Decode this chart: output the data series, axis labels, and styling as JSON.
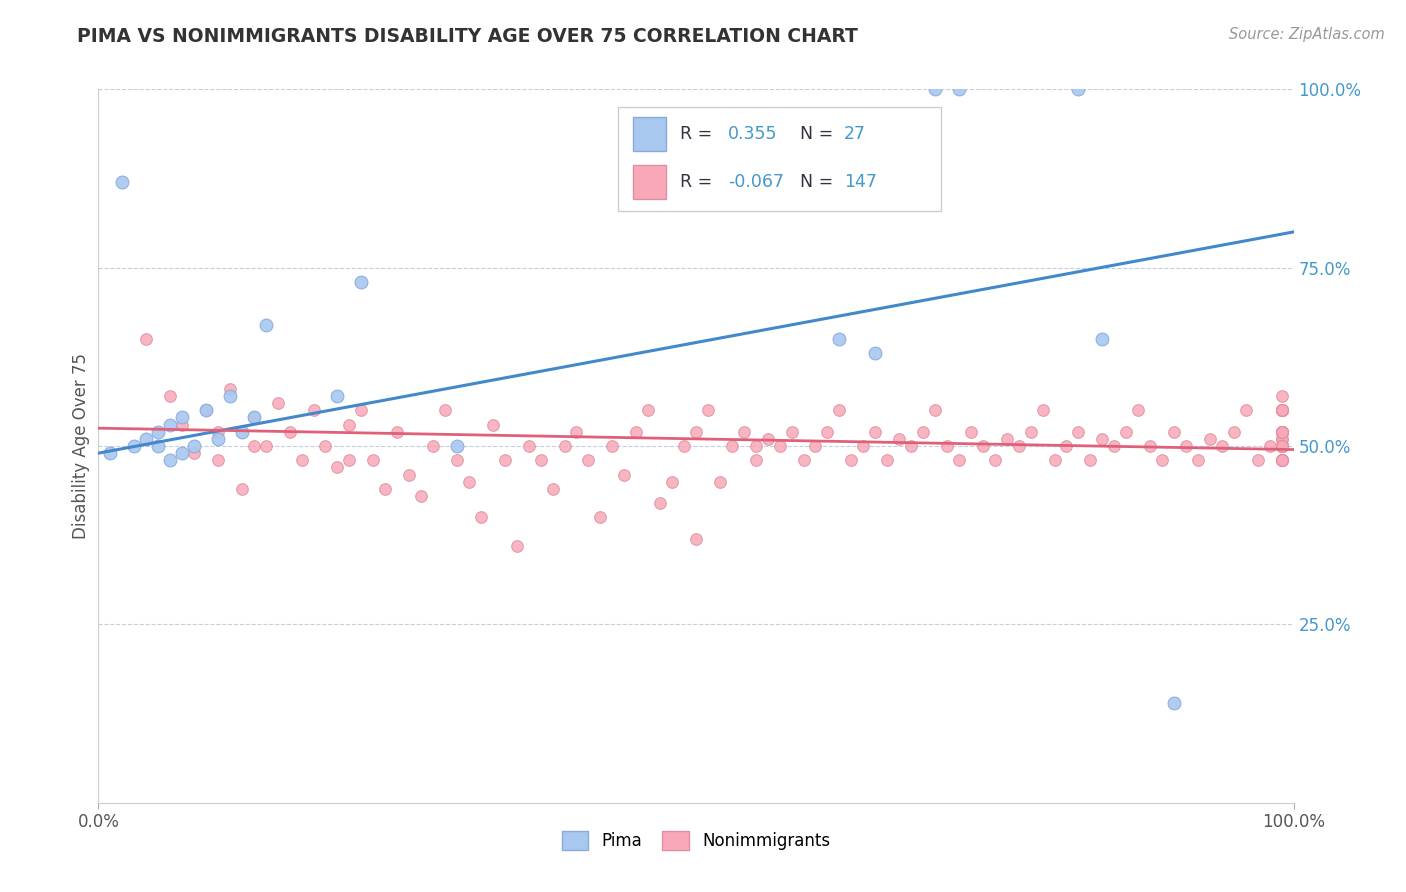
{
  "title": "PIMA VS NONIMMIGRANTS DISABILITY AGE OVER 75 CORRELATION CHART",
  "source": "Source: ZipAtlas.com",
  "ylabel": "Disability Age Over 75",
  "pima_color": "#a8c8f0",
  "pima_edge_color": "#88aadd",
  "pima_line_color": "#4488cc",
  "nonimm_color": "#f8a8b8",
  "nonimm_edge_color": "#e090a0",
  "nonimm_line_color": "#e0607a",
  "right_tick_color": "#4499cc",
  "legend_text_color": "#333344",
  "legend_num_color": "#4499cc",
  "grid_color": "#aabbcc",
  "pima_R": 0.355,
  "pima_N": 27,
  "nonimm_R": -0.067,
  "nonimm_N": 147,
  "xlim": [
    0,
    100
  ],
  "ylim": [
    0,
    100
  ],
  "yticks": [
    25,
    50,
    75,
    100
  ],
  "ytick_labels": [
    "25.0%",
    "50.0%",
    "75.0%",
    "100.0%"
  ],
  "xtick_positions": [
    0,
    100
  ],
  "xtick_labels": [
    "0.0%",
    "100.0%"
  ],
  "pima_x": [
    1,
    2,
    3,
    4,
    5,
    5,
    6,
    6,
    7,
    7,
    8,
    9,
    10,
    11,
    12,
    13,
    14,
    20,
    22,
    30,
    62,
    65,
    70,
    72,
    82,
    84,
    90
  ],
  "pima_y": [
    49,
    87,
    50,
    51,
    52,
    50,
    53,
    48,
    54,
    49,
    50,
    55,
    51,
    57,
    52,
    54,
    67,
    57,
    73,
    50,
    65,
    63,
    100,
    100,
    100,
    65,
    14
  ],
  "nonimm_x": [
    4,
    6,
    7,
    8,
    9,
    10,
    10,
    11,
    12,
    13,
    13,
    14,
    15,
    16,
    17,
    18,
    19,
    20,
    21,
    21,
    22,
    23,
    24,
    25,
    26,
    27,
    28,
    29,
    30,
    31,
    32,
    33,
    34,
    35,
    36,
    37,
    38,
    39,
    40,
    41,
    42,
    43,
    44,
    45,
    46,
    47,
    48,
    49,
    50,
    50,
    51,
    52,
    53,
    54,
    55,
    55,
    56,
    57,
    58,
    59,
    60,
    61,
    62,
    63,
    64,
    65,
    66,
    67,
    68,
    69,
    70,
    71,
    72,
    73,
    74,
    75,
    76,
    77,
    78,
    79,
    80,
    81,
    82,
    83,
    84,
    85,
    86,
    87,
    88,
    89,
    90,
    91,
    92,
    93,
    94,
    95,
    96,
    97,
    98,
    99,
    99,
    99,
    99,
    99,
    99,
    99,
    99,
    99,
    99,
    99,
    99,
    99,
    99,
    99,
    99,
    99,
    99,
    99,
    99,
    99,
    99,
    99,
    99,
    99,
    99,
    99,
    99,
    99,
    99,
    99,
    99,
    99,
    99,
    99,
    99,
    99,
    99,
    99,
    99,
    99,
    99,
    99,
    99,
    99,
    99,
    99,
    99
  ],
  "nonimm_y": [
    65,
    57,
    53,
    49,
    55,
    52,
    48,
    58,
    44,
    54,
    50,
    50,
    56,
    52,
    48,
    55,
    50,
    47,
    53,
    48,
    55,
    48,
    44,
    52,
    46,
    43,
    50,
    55,
    48,
    45,
    40,
    53,
    48,
    36,
    50,
    48,
    44,
    50,
    52,
    48,
    40,
    50,
    46,
    52,
    55,
    42,
    45,
    50,
    52,
    37,
    55,
    45,
    50,
    52,
    50,
    48,
    51,
    50,
    52,
    48,
    50,
    52,
    55,
    48,
    50,
    52,
    48,
    51,
    50,
    52,
    55,
    50,
    48,
    52,
    50,
    48,
    51,
    50,
    52,
    55,
    48,
    50,
    52,
    48,
    51,
    50,
    52,
    55,
    50,
    48,
    52,
    50,
    48,
    51,
    50,
    52,
    55,
    48,
    50,
    52,
    48,
    55,
    50,
    50,
    52,
    48,
    50,
    52,
    55,
    48,
    50,
    52,
    48,
    51,
    50,
    52,
    55,
    50,
    55,
    52,
    55,
    55,
    50,
    50,
    52,
    48,
    52,
    52,
    55,
    48,
    50,
    52,
    52,
    51,
    50,
    52,
    55,
    50,
    55,
    52,
    55,
    55,
    50,
    50,
    52,
    48,
    57
  ]
}
